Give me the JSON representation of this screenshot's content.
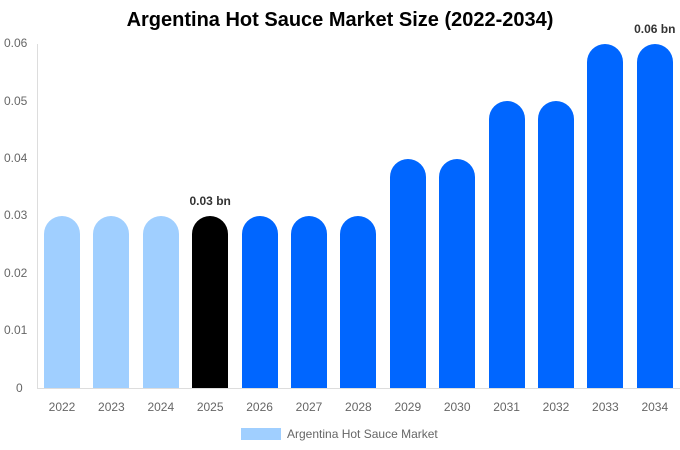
{
  "chart_data": {
    "type": "bar",
    "title": "Argentina Hot Sauce Market Size (2022-2034)",
    "xlabel": "",
    "ylabel": "",
    "ylim": [
      0,
      0.06
    ],
    "grid": false,
    "legend_position": "bottom",
    "yticks": [
      "0.06",
      "0.05",
      "0.04",
      "0.03",
      "0.02",
      "0.01",
      "0"
    ],
    "categories": [
      "2022",
      "2023",
      "2024",
      "2025",
      "2026",
      "2027",
      "2028",
      "2029",
      "2030",
      "2031",
      "2032",
      "2033",
      "2034"
    ],
    "series": [
      {
        "name": "Argentina Hot Sauce Market",
        "values": [
          0.03,
          0.03,
          0.03,
          0.03,
          0.03,
          0.03,
          0.03,
          0.04,
          0.04,
          0.05,
          0.05,
          0.06,
          0.06
        ],
        "colors": [
          "#a0cfff",
          "#a0cfff",
          "#a0cfff",
          "#000000",
          "#0066ff",
          "#0066ff",
          "#0066ff",
          "#0066ff",
          "#0066ff",
          "#0066ff",
          "#0066ff",
          "#0066ff",
          "#0066ff"
        ]
      }
    ],
    "annotations": [
      {
        "category": "2025",
        "label": "0.03 bn"
      },
      {
        "category": "2034",
        "label": "0.06 bn"
      }
    ]
  },
  "legend": {
    "label": "Argentina Hot Sauce Market",
    "color": "#a0cfff"
  }
}
